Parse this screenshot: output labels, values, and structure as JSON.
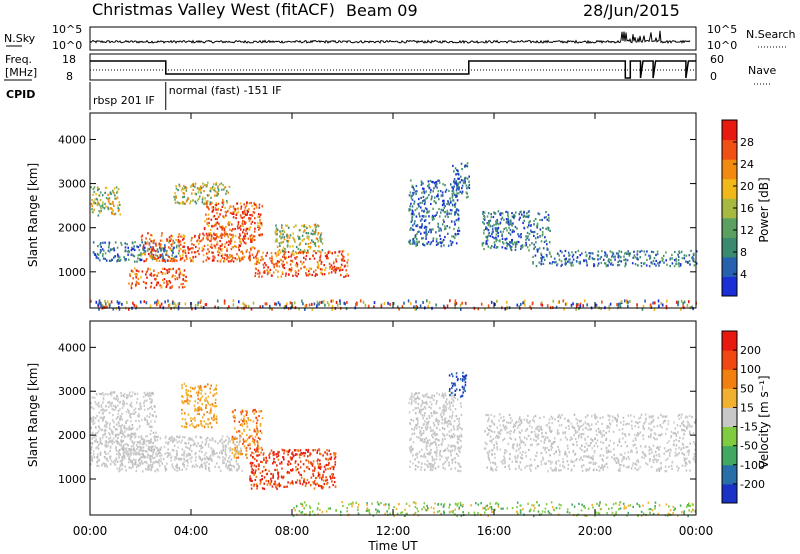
{
  "header": {
    "station": "Christmas Valley West (fitACF)",
    "beam": "Beam 09",
    "date": "28/Jun/2015"
  },
  "nsky": {
    "label": "N.Sky",
    "ticks": [
      "10^5",
      "10^0"
    ],
    "right_label": "N.Search",
    "right_ticks": [
      "10^5",
      "10^0"
    ]
  },
  "freq": {
    "label_line1": "Freq.",
    "label_line2": "[MHz]",
    "ticks": [
      "18",
      "8"
    ],
    "right_label": "Nave",
    "right_ticks": [
      "60",
      "0"
    ],
    "cpid_label": "CPID",
    "cpid_segments": [
      {
        "start_h": 0.0,
        "end_h": 3.0,
        "text": "rbsp 201 IF"
      },
      {
        "start_h": 3.0,
        "end_h": 24.0,
        "text": "normal (fast) -151 IF"
      }
    ]
  },
  "colors": {
    "power": [
      "#1a2fd6",
      "#2860b0",
      "#3a8a70",
      "#5aa060",
      "#a8b840",
      "#f0b818",
      "#f28a10",
      "#f05014",
      "#e81a10"
    ],
    "velocity": [
      "#e81a10",
      "#f04810",
      "#f28010",
      "#f2b030",
      "#c8c8c8",
      "#80cc40",
      "#40a860",
      "#286ea8",
      "#1a32c8"
    ]
  },
  "chart_data": [
    {
      "type": "heatmap",
      "name": "power",
      "xlabel": "Time UT",
      "ylabel": "Slant Range [km]",
      "x_tick_labels": [
        "00:00",
        "04:00",
        "08:00",
        "12:00",
        "16:00",
        "20:00",
        "00:00"
      ],
      "x_ticks_h": [
        0,
        4,
        8,
        12,
        16,
        20,
        24
      ],
      "xlim_h": [
        0,
        24
      ],
      "ylim_km": [
        180,
        4600
      ],
      "y_ticks": [
        1000,
        2000,
        3000,
        4000
      ],
      "colorbar": {
        "label": "Power [dB]",
        "ticks": [
          "4",
          "8",
          "12",
          "16",
          "20",
          "24",
          "28"
        ],
        "range": [
          0,
          30
        ]
      },
      "regions": [
        {
          "t0": 0.0,
          "t1": 1.2,
          "r0": 2300,
          "r1": 2950,
          "level": "mid"
        },
        {
          "t0": 0.1,
          "t1": 3.5,
          "r0": 1250,
          "r1": 1700,
          "level": "low"
        },
        {
          "t0": 1.5,
          "t1": 3.8,
          "r0": 650,
          "r1": 1100,
          "level": "high"
        },
        {
          "t0": 2.0,
          "t1": 6.5,
          "r0": 1250,
          "r1": 1900,
          "level": "high"
        },
        {
          "t0": 3.3,
          "t1": 5.5,
          "r0": 2550,
          "r1": 3050,
          "level": "mid"
        },
        {
          "t0": 4.5,
          "t1": 6.8,
          "r0": 1700,
          "r1": 2600,
          "level": "high"
        },
        {
          "t0": 6.5,
          "t1": 10.2,
          "r0": 900,
          "r1": 1500,
          "level": "high"
        },
        {
          "t0": 7.3,
          "t1": 9.2,
          "r0": 1450,
          "r1": 2100,
          "level": "mid"
        },
        {
          "t0": 12.6,
          "t1": 14.6,
          "r0": 1600,
          "r1": 3100,
          "level": "low"
        },
        {
          "t0": 14.3,
          "t1": 15.0,
          "r0": 2700,
          "r1": 3500,
          "level": "low"
        },
        {
          "t0": 15.5,
          "t1": 18.2,
          "r0": 1500,
          "r1": 2400,
          "level": "low"
        },
        {
          "t0": 17.5,
          "t1": 24.0,
          "r0": 1150,
          "r1": 1500,
          "level": "low"
        },
        {
          "t0": 0.0,
          "t1": 24.0,
          "r0": 180,
          "r1": 380,
          "level": "speckle"
        }
      ]
    },
    {
      "type": "heatmap",
      "name": "velocity",
      "xlabel": "Time UT",
      "ylabel": "Slant Range [km]",
      "x_tick_labels": [
        "00:00",
        "04:00",
        "08:00",
        "12:00",
        "16:00",
        "20:00",
        "00:00"
      ],
      "x_ticks_h": [
        0,
        4,
        8,
        12,
        16,
        20,
        24
      ],
      "xlim_h": [
        0,
        24
      ],
      "ylim_km": [
        180,
        4600
      ],
      "y_ticks": [
        1000,
        2000,
        3000,
        4000
      ],
      "colorbar": {
        "label": "Velocity [m s⁻¹]",
        "ticks": [
          "-200",
          "-100",
          "-50",
          "-15",
          "15",
          "50",
          "100",
          "200"
        ],
        "range": [
          -250,
          250
        ]
      },
      "regions": [
        {
          "t0": 0.0,
          "t1": 2.6,
          "r0": 1300,
          "r1": 3000,
          "level": "grey"
        },
        {
          "t0": 1.0,
          "t1": 6.0,
          "r0": 1200,
          "r1": 2000,
          "level": "grey"
        },
        {
          "t0": 3.6,
          "t1": 5.0,
          "r0": 2200,
          "r1": 3200,
          "level": "orange"
        },
        {
          "t0": 5.6,
          "t1": 6.8,
          "r0": 1500,
          "r1": 2600,
          "level": "yellow"
        },
        {
          "t0": 6.3,
          "t1": 9.7,
          "r0": 800,
          "r1": 1700,
          "level": "red"
        },
        {
          "t0": 12.6,
          "t1": 14.7,
          "r0": 1200,
          "r1": 3000,
          "level": "grey"
        },
        {
          "t0": 14.2,
          "t1": 14.9,
          "r0": 2900,
          "r1": 3450,
          "level": "blue"
        },
        {
          "t0": 15.6,
          "t1": 24.0,
          "r0": 1200,
          "r1": 2500,
          "level": "grey"
        },
        {
          "t0": 8.0,
          "t1": 24.0,
          "r0": 180,
          "r1": 500,
          "level": "green"
        }
      ]
    }
  ]
}
